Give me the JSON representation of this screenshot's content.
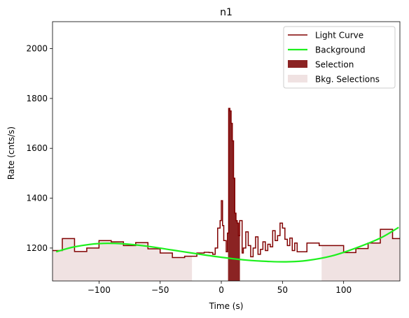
{
  "chart_data": {
    "type": "line",
    "title": "n1",
    "xlabel": "Time (s)",
    "ylabel": "Rate (cnts/s)",
    "xlim": [
      -138,
      146
    ],
    "ylim": [
      1068,
      2108
    ],
    "xticks": [
      -100,
      -50,
      0,
      50,
      100
    ],
    "yticks": [
      1200,
      1400,
      1600,
      1800,
      2000
    ],
    "legend_position": "top-right",
    "legend": [
      {
        "label": "Light Curve",
        "kind": "line",
        "color": "#800000"
      },
      {
        "label": "Background",
        "kind": "line",
        "color": "#1ef01e"
      },
      {
        "label": "Selection",
        "kind": "patch",
        "color": "#8b2323"
      },
      {
        "label": "Bkg. Selections",
        "kind": "patch",
        "color": "#f0e2e2"
      }
    ],
    "background_selections": [
      [
        -138,
        -24
      ],
      [
        82,
        146
      ]
    ],
    "selection": {
      "range": [
        5.5,
        15.2
      ],
      "color": "#8b2323"
    },
    "light_curve": {
      "name": "Light Curve",
      "color": "#800000",
      "steps": [
        [
          -138,
          1190
        ],
        [
          -130,
          1238
        ],
        [
          -120,
          1186
        ],
        [
          -110,
          1200
        ],
        [
          -100,
          1230
        ],
        [
          -90,
          1225
        ],
        [
          -80,
          1210
        ],
        [
          -70,
          1222
        ],
        [
          -60,
          1197
        ],
        [
          -50,
          1180
        ],
        [
          -40,
          1162
        ],
        [
          -30,
          1167
        ],
        [
          -20,
          1180
        ],
        [
          -14,
          1183
        ],
        [
          -10,
          1182
        ],
        [
          -7,
          1175
        ],
        [
          -5,
          1200
        ],
        [
          -3,
          1280
        ],
        [
          -1,
          1310
        ],
        [
          0,
          1390
        ],
        [
          1,
          1290
        ],
        [
          2,
          1230
        ],
        [
          4,
          1185
        ],
        [
          5,
          1260
        ],
        [
          6,
          1760
        ],
        [
          7,
          1750
        ],
        [
          8,
          1700
        ],
        [
          9,
          1630
        ],
        [
          10,
          1480
        ],
        [
          11,
          1340
        ],
        [
          12,
          1310
        ],
        [
          13,
          1300
        ],
        [
          14,
          1250
        ],
        [
          15,
          1310
        ],
        [
          17,
          1180
        ],
        [
          18,
          1200
        ],
        [
          20,
          1265
        ],
        [
          22,
          1210
        ],
        [
          24,
          1165
        ],
        [
          26,
          1200
        ],
        [
          28,
          1245
        ],
        [
          30,
          1175
        ],
        [
          32,
          1195
        ],
        [
          34,
          1225
        ],
        [
          36,
          1190
        ],
        [
          38,
          1215
        ],
        [
          40,
          1205
        ],
        [
          42,
          1270
        ],
        [
          44,
          1230
        ],
        [
          46,
          1250
        ],
        [
          48,
          1300
        ],
        [
          50,
          1280
        ],
        [
          52,
          1235
        ],
        [
          54,
          1210
        ],
        [
          56,
          1240
        ],
        [
          58,
          1190
        ],
        [
          60,
          1220
        ],
        [
          62,
          1185
        ],
        [
          70,
          1220
        ],
        [
          80,
          1210
        ],
        [
          90,
          1210
        ],
        [
          100,
          1182
        ],
        [
          110,
          1198
        ],
        [
          120,
          1220
        ],
        [
          130,
          1275
        ],
        [
          140,
          1238
        ],
        [
          146,
          1238
        ]
      ]
    },
    "background": {
      "name": "Background",
      "color": "#1ef01e",
      "x": [
        -135,
        -120,
        -100,
        -80,
        -60,
        -40,
        -20,
        0,
        20,
        40,
        55,
        70,
        90,
        110,
        130,
        145
      ],
      "y": [
        1185,
        1205,
        1218,
        1217,
        1207,
        1192,
        1177,
        1163,
        1152,
        1146,
        1145,
        1150,
        1168,
        1200,
        1240,
        1283
      ]
    }
  }
}
